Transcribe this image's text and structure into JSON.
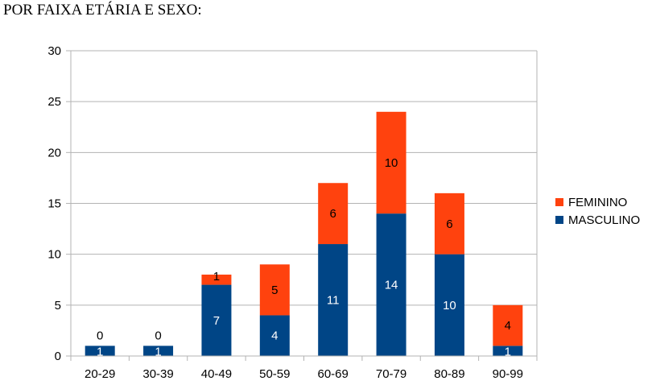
{
  "chart_data": {
    "type": "bar",
    "stacked": true,
    "title": "POR FAIXA ETÁRIA E SEXO:",
    "categories": [
      "20-29",
      "30-39",
      "40-49",
      "50-59",
      "60-69",
      "70-79",
      "80-89",
      "90-99"
    ],
    "series": [
      {
        "name": "MASCULINO",
        "values": [
          1,
          1,
          7,
          4,
          11,
          14,
          10,
          1
        ],
        "color": "#004586"
      },
      {
        "name": "FEMININO",
        "values": [
          0,
          0,
          1,
          5,
          6,
          10,
          6,
          4
        ],
        "color": "#ff420e"
      }
    ],
    "ylim": [
      0,
      30
    ],
    "yticks": [
      "0",
      "5",
      "10",
      "15",
      "20",
      "25",
      "30"
    ],
    "grid": true,
    "legend_position": "right",
    "label_colors": {
      "MASCULINO": "#ffffff",
      "FEMININO": "#000000"
    }
  }
}
